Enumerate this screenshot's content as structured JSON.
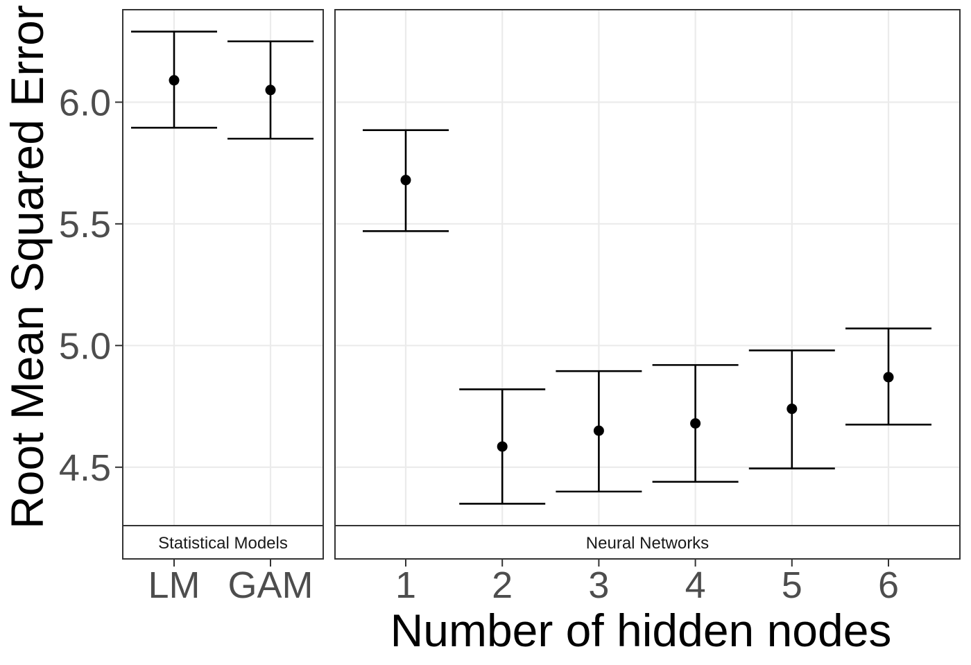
{
  "chart_data": {
    "type": "scatter",
    "subtype": "point-with-errorbars",
    "title": "",
    "xlabel": "Number of hidden nodes",
    "ylabel": "Root Mean Squared Error",
    "ylim": [
      4.26,
      6.38
    ],
    "yticks": [
      4.5,
      5.0,
      5.5,
      6.0
    ],
    "ytick_labels": [
      "4.5",
      "5.0",
      "5.5",
      "6.0"
    ],
    "grid": true,
    "legend": "none",
    "facets": [
      {
        "strip_label": "Statistical Models",
        "categories": [
          "LM",
          "GAM"
        ],
        "points": [
          {
            "x": "LM",
            "y": 6.09,
            "ymin": 5.895,
            "ymax": 6.29
          },
          {
            "x": "GAM",
            "y": 6.05,
            "ymin": 5.85,
            "ymax": 6.25
          }
        ]
      },
      {
        "strip_label": "Neural Networks",
        "categories": [
          "1",
          "2",
          "3",
          "4",
          "5",
          "6"
        ],
        "points": [
          {
            "x": "1",
            "y": 5.68,
            "ymin": 5.47,
            "ymax": 5.885
          },
          {
            "x": "2",
            "y": 4.585,
            "ymin": 4.35,
            "ymax": 4.82
          },
          {
            "x": "3",
            "y": 4.65,
            "ymin": 4.4,
            "ymax": 4.895
          },
          {
            "x": "4",
            "y": 4.68,
            "ymin": 4.44,
            "ymax": 4.92
          },
          {
            "x": "5",
            "y": 4.74,
            "ymin": 4.495,
            "ymax": 4.98
          },
          {
            "x": "6",
            "y": 4.87,
            "ymin": 4.675,
            "ymax": 5.07
          }
        ]
      }
    ],
    "colors": {
      "point": "#000000",
      "grid": "#ebebeb",
      "panel_border": "#333333",
      "tick_text": "#4d4d4d"
    }
  }
}
